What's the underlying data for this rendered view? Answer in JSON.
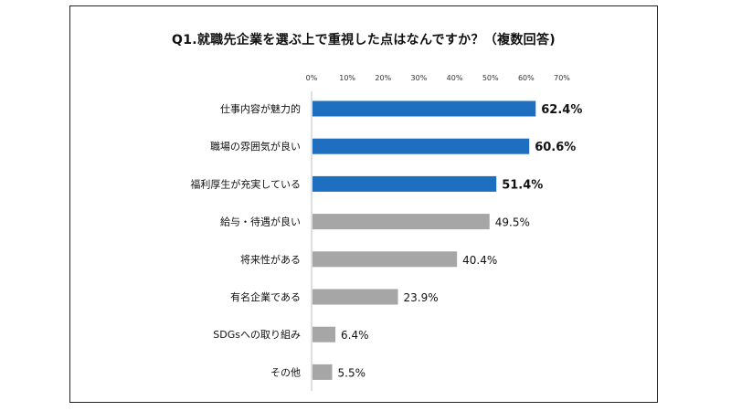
{
  "chart_data": {
    "type": "bar",
    "orientation": "horizontal",
    "title": "Q1.就職先企業を選ぶ上で重視した点はなんですか？（複数回答)",
    "xlim": [
      0,
      70
    ],
    "x_ticks": [
      "0%",
      "10%",
      "20%",
      "30%",
      "40%",
      "50%",
      "60%",
      "70%"
    ],
    "categories": [
      "仕事内容が魅力的",
      "職場の雰囲気が良い",
      "福利厚生が充実している",
      "給与・待遇が良い",
      "将来性がある",
      "有名企業である",
      "SDGsへの取り組み",
      "その他"
    ],
    "values": [
      62.4,
      60.6,
      51.4,
      49.5,
      40.4,
      23.9,
      6.4,
      5.5
    ],
    "value_labels": [
      "62.4%",
      "60.6%",
      "51.4%",
      "49.5%",
      "40.4%",
      "23.9%",
      "6.4%",
      "5.5%"
    ],
    "highlighted_count": 3,
    "colors": {
      "highlight": "#1e6fbf",
      "normal": "#a6a6a6",
      "axis": "#bfbfbf",
      "text": "#111111"
    },
    "grid": false,
    "legend": "none"
  }
}
